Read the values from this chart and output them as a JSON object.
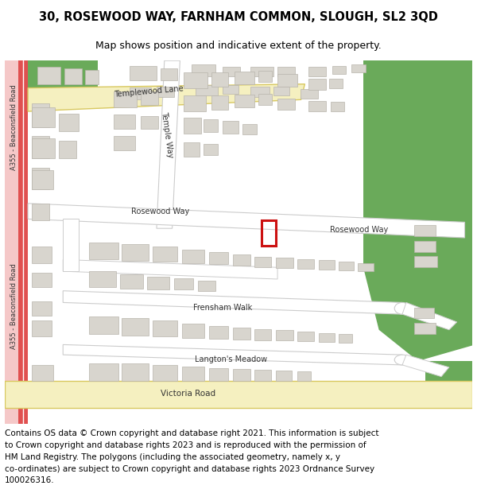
{
  "title": "30, ROSEWOOD WAY, FARNHAM COMMON, SLOUGH, SL2 3QD",
  "subtitle": "Map shows position and indicative extent of the property.",
  "footer_line1": "Contains OS data © Crown copyright and database right 2021. This information is subject",
  "footer_line2": "to Crown copyright and database rights 2023 and is reproduced with the permission of",
  "footer_line3": "HM Land Registry. The polygons (including the associated geometry, namely x, y",
  "footer_line4": "co-ordinates) are subject to Crown copyright and database rights 2023 Ordnance Survey",
  "footer_line5": "100026316.",
  "map_bg": "#f0efed",
  "road_white": "#ffffff",
  "road_border": "#cccccc",
  "major_road_fill": "#f5f0c0",
  "major_road_border": "#d8c860",
  "building_fill": "#d8d5ce",
  "building_border": "#b8b4ac",
  "green_fill": "#6aaa5a",
  "pink_fill": "#f5c8c8",
  "red_road": "#e05050",
  "red_highlight": "#cc1111",
  "title_fontsize": 10.5,
  "subtitle_fontsize": 9,
  "label_fontsize": 7,
  "footer_fontsize": 7.5
}
